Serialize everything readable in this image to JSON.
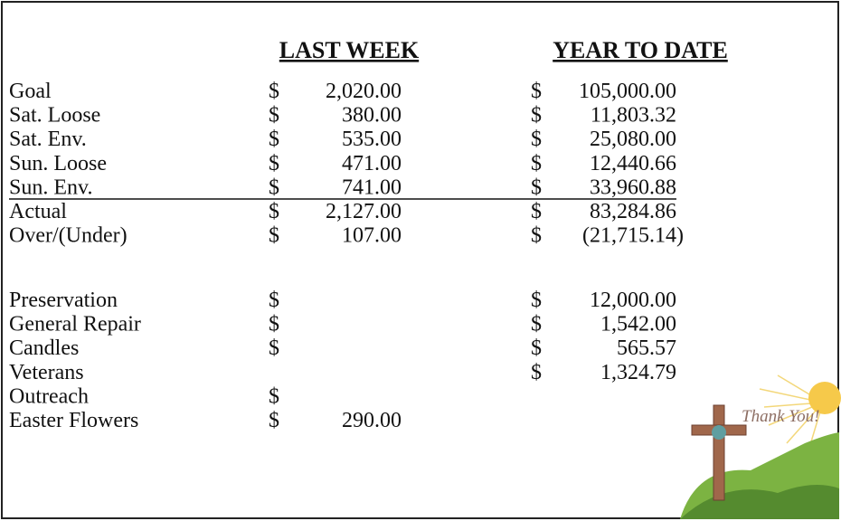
{
  "headers": [
    "LAST WEEK",
    "YEAR TO DATE"
  ],
  "sections": [
    [
      [
        "Goal",
        "$",
        "2,020.00",
        "$",
        "105,000.00"
      ],
      [
        "Sat. Loose",
        "$",
        "380.00",
        "$",
        "11,803.32"
      ],
      [
        "Sat. Env.",
        "$",
        "535.00",
        "$",
        "25,080.00"
      ],
      [
        "Sun. Loose",
        "$",
        "471.00",
        "$",
        "12,440.66"
      ],
      [
        "Sun. Env.",
        "$",
        "741.00",
        "$",
        "33,960.88"
      ],
      [
        "Actual",
        "$",
        "2,127.00",
        "$",
        "83,284.86"
      ],
      [
        "Over/(Under)",
        "$",
        "107.00",
        "$",
        "(21,715.14)"
      ]
    ],
    [
      [
        "Preservation",
        "$",
        null,
        "$",
        "12,000.00"
      ],
      [
        "General Repair",
        "$",
        null,
        "$",
        "1,542.00"
      ],
      [
        "Candles",
        "$",
        null,
        "$",
        "565.57"
      ],
      [
        "Veterans",
        null,
        null,
        "$",
        "1,324.79"
      ],
      [
        "Outreach",
        "$",
        null,
        null,
        null
      ],
      [
        "Easter Flowers",
        "$",
        "290.00",
        null,
        null
      ]
    ]
  ],
  "graphic_text": "Thank You!"
}
